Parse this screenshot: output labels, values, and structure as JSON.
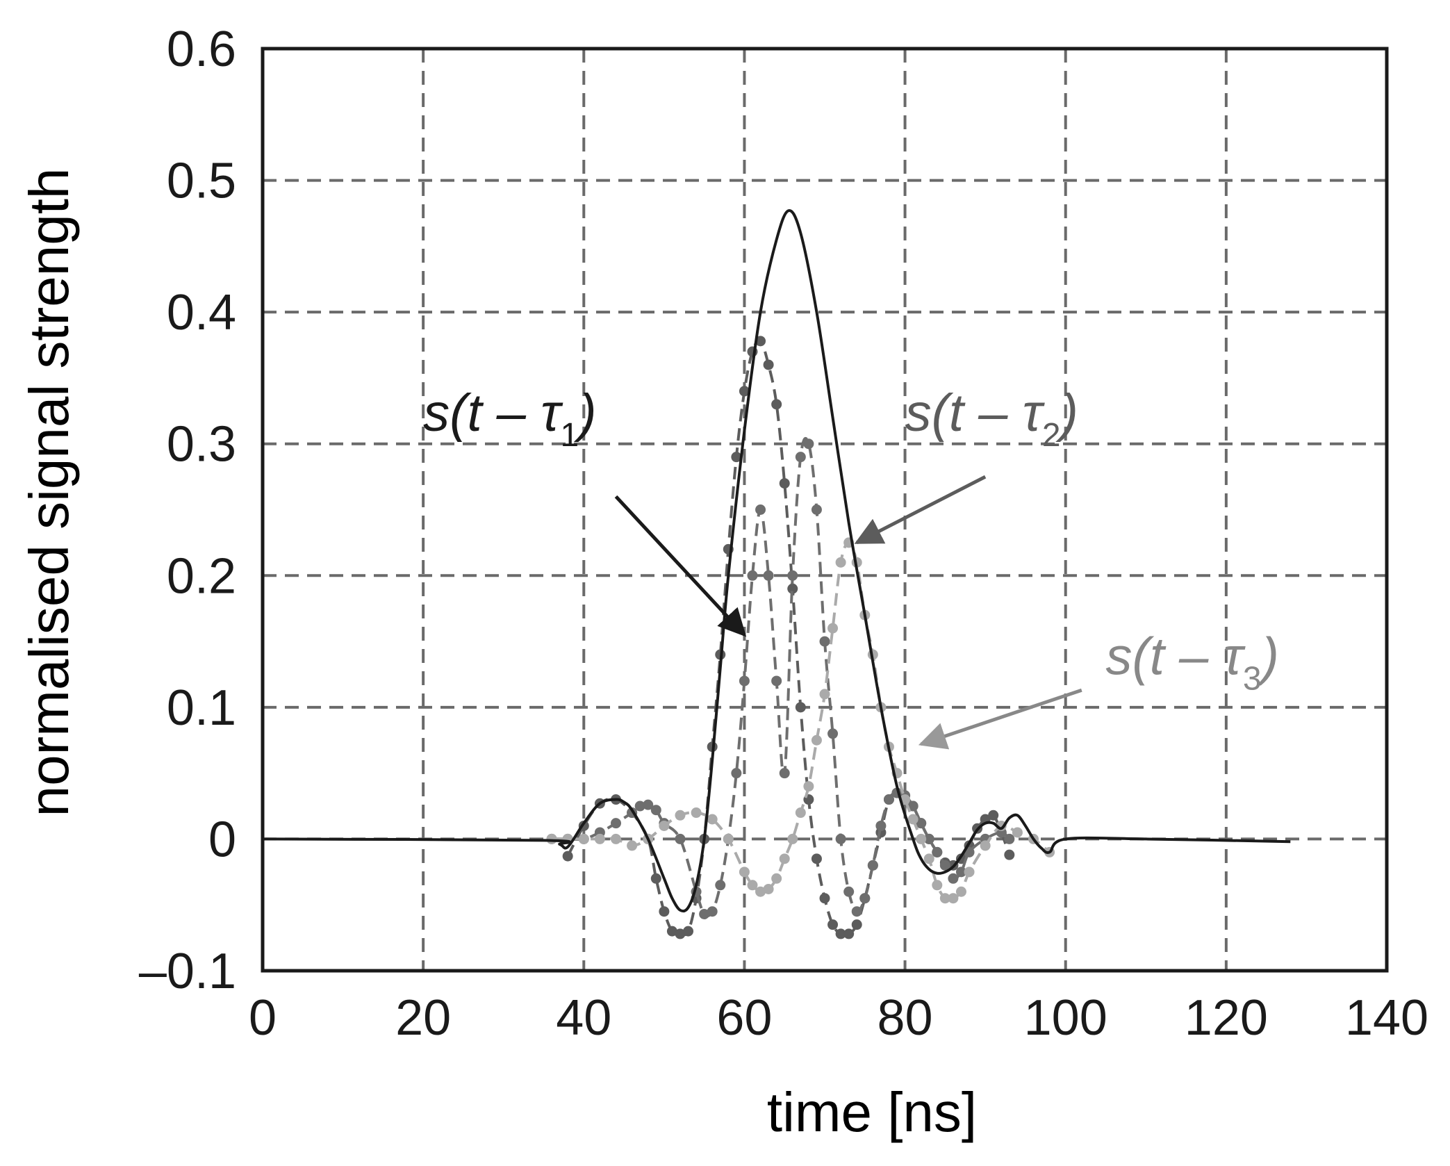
{
  "chart_data": {
    "type": "line",
    "title": "",
    "xlabel": "time [ns]",
    "ylabel": "normalised signal strength",
    "xlim": [
      0,
      140
    ],
    "ylim": [
      -0.1,
      0.6
    ],
    "x_ticks": [
      "0",
      "20",
      "40",
      "60",
      "80",
      "100",
      "120",
      "140"
    ],
    "y_ticks": [
      "–0.1",
      "0",
      "0.1",
      "0.2",
      "0.3",
      "0.4",
      "0.5",
      "0.6"
    ],
    "grid": true,
    "grid_style": "dashed",
    "main_curve": {
      "style": "solid",
      "color": "#1a1a1a",
      "x": [
        0,
        35,
        37,
        38,
        40,
        42,
        44,
        45,
        46,
        48,
        50,
        51,
        52,
        53,
        54,
        55,
        56,
        57,
        58,
        60,
        62,
        64,
        65.5,
        67,
        69,
        71,
        73,
        75,
        77,
        79,
        81,
        82,
        83,
        84,
        85,
        86,
        87,
        88,
        89,
        90,
        91,
        92,
        93,
        94,
        95,
        96,
        97,
        98,
        100,
        110,
        128
      ],
      "y": [
        0,
        -0.001,
        -0.004,
        -0.006,
        0.012,
        0.027,
        0.03,
        0.028,
        0.022,
        0.0,
        -0.03,
        -0.045,
        -0.054,
        -0.052,
        -0.035,
        0.0,
        0.06,
        0.13,
        0.2,
        0.31,
        0.4,
        0.455,
        0.477,
        0.46,
        0.4,
        0.32,
        0.24,
        0.17,
        0.1,
        0.04,
        0.0,
        -0.015,
        -0.023,
        -0.026,
        -0.025,
        -0.021,
        -0.013,
        -0.003,
        0.007,
        0.012,
        0.012,
        0.008,
        0.016,
        0.018,
        0.01,
        0.0,
        -0.007,
        -0.01,
        0.0,
        0.0,
        -0.002
      ]
    },
    "series": [
      {
        "style": "dashed-dotted",
        "color": "#5c5c5c",
        "x": [
          38,
          40,
          42,
          44,
          46,
          48,
          49,
          50,
          51,
          52,
          53,
          54,
          55,
          56,
          57,
          58,
          59,
          60,
          61,
          62,
          63,
          64,
          65,
          66,
          67,
          68,
          69,
          70,
          71,
          72,
          73,
          74,
          75,
          76,
          77,
          78,
          79,
          80,
          81,
          82,
          83,
          84,
          85,
          86,
          87,
          88,
          89,
          90,
          91,
          92,
          93
        ],
        "y": [
          -0.013,
          0.01,
          0.027,
          0.03,
          0.02,
          0.0,
          -0.03,
          -0.055,
          -0.07,
          -0.072,
          -0.07,
          -0.045,
          0.0,
          0.07,
          0.14,
          0.22,
          0.29,
          0.34,
          0.37,
          0.378,
          0.36,
          0.33,
          0.27,
          0.19,
          0.1,
          0.03,
          -0.015,
          -0.045,
          -0.065,
          -0.072,
          -0.072,
          -0.065,
          -0.045,
          -0.02,
          0.005,
          0.03,
          0.035,
          0.033,
          0.025,
          0.012,
          0.0,
          -0.01,
          -0.018,
          -0.02,
          -0.015,
          -0.005,
          0.008,
          0.015,
          0.018,
          0.005,
          -0.012
        ]
      },
      {
        "style": "dashed-dotted",
        "color": "#6e6e6e",
        "x": [
          36,
          38,
          40,
          42,
          44,
          46,
          47,
          48,
          49,
          50,
          52,
          54,
          55,
          56,
          57,
          58,
          59,
          60,
          61,
          62,
          63,
          64,
          65,
          66,
          67,
          68,
          69,
          70,
          71,
          72,
          73,
          74,
          75,
          76,
          77,
          78,
          79,
          80,
          81,
          82,
          83,
          84,
          85,
          86,
          87,
          88,
          90,
          92,
          93
        ],
        "y": [
          0,
          0,
          0.0,
          0.005,
          0.012,
          0.02,
          0.025,
          0.026,
          0.022,
          0.012,
          0.0,
          -0.04,
          -0.057,
          -0.055,
          -0.035,
          0.0,
          0.05,
          0.12,
          0.2,
          0.25,
          0.2,
          0.12,
          0.05,
          0.2,
          0.29,
          0.3,
          0.25,
          0.15,
          0.08,
          0.0,
          -0.04,
          -0.055,
          -0.045,
          -0.02,
          0.01,
          0.03,
          0.035,
          0.033,
          0.025,
          0.012,
          0.0,
          -0.01,
          -0.02,
          -0.03,
          -0.025,
          -0.01,
          0.0,
          0.005,
          0.0
        ]
      },
      {
        "style": "dashed-dotted",
        "color": "#aaaaaa",
        "x": [
          36,
          38,
          40,
          42,
          44,
          46,
          48,
          50,
          52,
          54,
          56,
          58,
          60,
          61,
          62,
          63,
          64,
          65,
          66,
          67,
          68,
          69,
          70,
          71,
          72,
          73,
          74,
          75,
          76,
          77,
          78,
          79,
          80,
          81,
          82,
          83,
          84,
          85,
          86,
          87,
          88,
          90,
          92,
          94,
          96,
          98
        ],
        "y": [
          0,
          0,
          0,
          0,
          0,
          -0.005,
          0.0,
          0.01,
          0.018,
          0.02,
          0.015,
          0.0,
          -0.025,
          -0.035,
          -0.04,
          -0.038,
          -0.03,
          -0.015,
          0.0,
          0.02,
          0.04,
          0.075,
          0.11,
          0.16,
          0.21,
          0.225,
          0.21,
          0.17,
          0.14,
          0.1,
          0.07,
          0.05,
          0.03,
          0.015,
          0.0,
          -0.015,
          -0.035,
          -0.045,
          -0.045,
          -0.04,
          -0.025,
          -0.005,
          0.01,
          0.005,
          0.0,
          -0.01
        ]
      }
    ],
    "annotations": [
      {
        "base": "s(t – τ",
        "sub": "1",
        "close": ")",
        "color": "#1a1a1a",
        "at": [
          20,
          0.31
        ],
        "arrow_from": [
          44,
          0.26
        ],
        "arrow_to": [
          60,
          0.155
        ]
      },
      {
        "base": "s(t – τ",
        "sub": "2",
        "close": ")",
        "color": "#5c5c5c",
        "at": [
          80,
          0.31
        ],
        "arrow_from": [
          90,
          0.275
        ],
        "arrow_to": [
          74,
          0.225
        ]
      },
      {
        "base": "s(t – τ",
        "sub": "3",
        "close": ")",
        "color": "#888888",
        "at": [
          105,
          0.125
        ],
        "arrow_from": [
          102,
          0.113
        ],
        "arrow_to": [
          82,
          0.072
        ]
      }
    ]
  }
}
